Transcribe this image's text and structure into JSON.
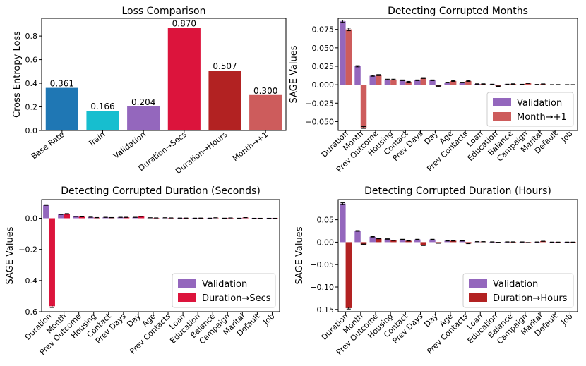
{
  "chart_data": [
    {
      "type": "bar",
      "title": "Loss Comparison",
      "ylabel": "Cross Entropy Loss",
      "ylim": [
        0,
        0.95
      ],
      "yticks": [
        0.0,
        0.2,
        0.4,
        0.6,
        0.8
      ],
      "categories": [
        "Base Rate",
        "Train",
        "Validation",
        "Duration→Secs",
        "Duration→Hours",
        "Month→+1"
      ],
      "values": [
        0.361,
        0.166,
        0.204,
        0.87,
        0.507,
        0.3
      ],
      "value_labels": [
        "0.361",
        "0.166",
        "0.204",
        "0.870",
        "0.507",
        "0.300"
      ],
      "colors": [
        "#1f77b4",
        "#17becf",
        "#9467bd",
        "#dc143c",
        "#b22222",
        "#cd5c5c"
      ]
    },
    {
      "type": "bar",
      "title": "Detecting Corrupted Months",
      "ylabel": "SAGE Values",
      "ylim": [
        -0.062,
        0.09
      ],
      "yticks": [
        -0.05,
        -0.025,
        0.0,
        0.025,
        0.05,
        0.075
      ],
      "ytick_labels": [
        "−0.050",
        "−0.025",
        "0.000",
        "0.025",
        "0.050",
        "0.075"
      ],
      "categories": [
        "Duration",
        "Month",
        "Prev Outcome",
        "Housing",
        "Contact",
        "Prev Days",
        "Day",
        "Age",
        "Prev Contacts",
        "Loan",
        "Education",
        "Balance",
        "Campaign",
        "Marital",
        "Default",
        "Job"
      ],
      "legend_position": "lower-right",
      "series": [
        {
          "name": "Validation",
          "color": "#9467bd",
          "values": [
            0.086,
            0.025,
            0.012,
            0.007,
            0.006,
            0.006,
            0.006,
            0.003,
            0.003,
            0.001,
            0.0005,
            0.0005,
            0.0004,
            0.0003,
            0.0001,
            0.0001
          ],
          "errors": [
            0.0015,
            0.0008,
            0.0006,
            0.0005,
            0.0005,
            0.0005,
            0.0005,
            0.0004,
            0.0004,
            0.0003,
            0.0003,
            0.0003,
            0.0003,
            0.0002,
            0.0001,
            0.0001
          ]
        },
        {
          "name": "Month→+1",
          "color": "#cd5c5c",
          "values": [
            0.075,
            -0.058,
            0.013,
            0.007,
            0.004,
            0.009,
            -0.002,
            0.005,
            0.005,
            0.001,
            -0.002,
            0.001,
            0.002,
            0.001,
            0.0002,
            0.0001
          ],
          "errors": [
            0.0018,
            0.0012,
            0.0007,
            0.0005,
            0.0005,
            0.0006,
            0.0005,
            0.0005,
            0.0005,
            0.0003,
            0.0003,
            0.0003,
            0.0003,
            0.0002,
            0.0001,
            0.0001
          ]
        }
      ]
    },
    {
      "type": "bar",
      "title": "Detecting Corrupted Duration (Seconds)",
      "ylabel": "SAGE Values",
      "ylim": [
        -0.6,
        0.12
      ],
      "yticks": [
        -0.6,
        -0.4,
        -0.2,
        0.0
      ],
      "ytick_labels": [
        "−0.6",
        "−0.4",
        "−0.2",
        "0.0"
      ],
      "categories": [
        "Duration",
        "Month",
        "Prev Outcome",
        "Housing",
        "Contact",
        "Prev Days",
        "Day",
        "Age",
        "Prev Contacts",
        "Loan",
        "Education",
        "Balance",
        "Campaign",
        "Marital",
        "Default",
        "Job"
      ],
      "legend_position": "lower-right",
      "series": [
        {
          "name": "Validation",
          "color": "#9467bd",
          "values": [
            0.085,
            0.025,
            0.012,
            0.007,
            0.006,
            0.006,
            0.006,
            0.003,
            0.003,
            0.001,
            0.0005,
            0.0005,
            0.0004,
            0.0003,
            0.0001,
            0.0001
          ],
          "errors": [
            0.002,
            0.001,
            0.0008,
            0.0006,
            0.0006,
            0.0006,
            0.0006,
            0.0005,
            0.0005,
            0.0004,
            0.0004,
            0.0004,
            0.0003,
            0.0002,
            0.0001,
            0.0001
          ]
        },
        {
          "name": "Duration→Secs",
          "color": "#dc143c",
          "values": [
            -0.565,
            0.028,
            0.01,
            0.004,
            0.004,
            0.006,
            0.012,
            0.002,
            0.002,
            0.001,
            0.001,
            0.003,
            0.002,
            0.004,
            0.0001,
            0.0001
          ],
          "errors": [
            0.008,
            0.002,
            0.001,
            0.0008,
            0.0008,
            0.0008,
            0.001,
            0.0006,
            0.0006,
            0.0005,
            0.0005,
            0.0005,
            0.0005,
            0.0005,
            0.0001,
            0.0001
          ]
        }
      ]
    },
    {
      "type": "bar",
      "title": "Detecting Corrupted Duration (Hours)",
      "ylabel": "SAGE Values",
      "ylim": [
        -0.155,
        0.095
      ],
      "yticks": [
        -0.15,
        -0.1,
        -0.05,
        0.0,
        0.05
      ],
      "ytick_labels": [
        "−0.15",
        "−0.10",
        "−0.05",
        "0.00",
        "0.05"
      ],
      "categories": [
        "Duration",
        "Month",
        "Prev Outcome",
        "Housing",
        "Contact",
        "Prev Days",
        "Day",
        "Age",
        "Prev Contacts",
        "Loan",
        "Education",
        "Balance",
        "Campaign",
        "Marital",
        "Default",
        "Job"
      ],
      "legend_position": "lower-right",
      "series": [
        {
          "name": "Validation",
          "color": "#9467bd",
          "values": [
            0.086,
            0.025,
            0.012,
            0.007,
            0.006,
            0.006,
            0.006,
            0.003,
            0.003,
            0.001,
            0.0005,
            0.0005,
            0.0004,
            0.0003,
            0.0001,
            0.0001
          ],
          "errors": [
            0.0018,
            0.0008,
            0.0006,
            0.0005,
            0.0005,
            0.0005,
            0.0005,
            0.0004,
            0.0004,
            0.0003,
            0.0003,
            0.0003,
            0.0003,
            0.0002,
            0.0001,
            0.0001
          ]
        },
        {
          "name": "Duration→Hours",
          "color": "#b22222",
          "values": [
            -0.147,
            -0.005,
            0.008,
            0.004,
            0.003,
            -0.007,
            -0.002,
            0.003,
            -0.003,
            0.001,
            -0.0005,
            0.0005,
            -0.001,
            0.002,
            0.0001,
            0.0001
          ],
          "errors": [
            0.002,
            0.0008,
            0.0006,
            0.0005,
            0.0005,
            0.0006,
            0.0005,
            0.0004,
            0.0004,
            0.0003,
            0.0003,
            0.0003,
            0.0003,
            0.0002,
            0.0001,
            0.0001
          ]
        }
      ]
    }
  ]
}
